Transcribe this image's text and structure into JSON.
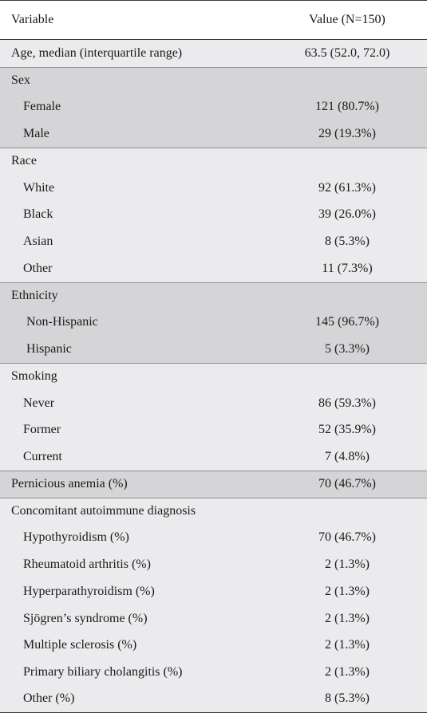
{
  "header": {
    "variable": "Variable",
    "value": "Value (N=150)"
  },
  "rows": [
    {
      "label": "Age, median (interquartile range)",
      "value": "63.5 (52.0, 72.0)"
    },
    {
      "label": "Sex",
      "value": ""
    },
    {
      "label": "Female",
      "value": "121 (80.7%)"
    },
    {
      "label": "Male",
      "value": "29 (19.3%)"
    },
    {
      "label": "Race",
      "value": ""
    },
    {
      "label": "White",
      "value": "92 (61.3%)"
    },
    {
      "label": "Black",
      "value": "39 (26.0%)"
    },
    {
      "label": "Asian",
      "value": "8 (5.3%)"
    },
    {
      "label": "Other",
      "value": "11 (7.3%)"
    },
    {
      "label": "Ethnicity",
      "value": ""
    },
    {
      "label": "Non-Hispanic",
      "value": "145 (96.7%)"
    },
    {
      "label": "Hispanic",
      "value": "5 (3.3%)"
    },
    {
      "label": "Smoking",
      "value": ""
    },
    {
      "label": "Never",
      "value": "86 (59.3%)"
    },
    {
      "label": "Former",
      "value": "52 (35.9%)"
    },
    {
      "label": "Current",
      "value": "7 (4.8%)"
    },
    {
      "label": "Pernicious anemia (%)",
      "value": "70 (46.7%)"
    },
    {
      "label": "Concomitant autoimmune diagnosis",
      "value": ""
    },
    {
      "label": "Hypothyroidism (%)",
      "value": "70 (46.7%)"
    },
    {
      "label": "Rheumatoid arthritis (%)",
      "value": "2 (1.3%)"
    },
    {
      "label": "Hyperparathyroidism (%)",
      "value": "2 (1.3%)"
    },
    {
      "label": "Sjögren’s syndrome (%)",
      "value": "2 (1.3%)"
    },
    {
      "label": "Multiple sclerosis (%)",
      "value": "2 (1.3%)"
    },
    {
      "label": "Primary biliary cholangitis (%)",
      "value": "2 (1.3%)"
    },
    {
      "label": "Other (%)",
      "value": "8 (5.3%)"
    }
  ]
}
